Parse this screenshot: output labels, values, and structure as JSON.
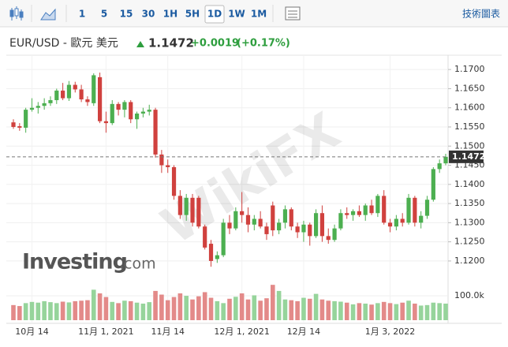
{
  "toolbar": {
    "intervals": [
      "1",
      "5",
      "15",
      "30",
      "1H",
      "5H",
      "1D",
      "1W",
      "1M"
    ],
    "active": "1D",
    "technical": "技術圖表"
  },
  "header": {
    "symbol": "EUR/USD - 歐元 美元",
    "price": "1.1472",
    "change": "+0.0019",
    "change_pct": "(+0.17%)"
  },
  "watermarks": {
    "wikifx": "WikiFX",
    "investing": "Investing",
    "dotcom": ".com"
  },
  "chart_data": {
    "type": "candlestick",
    "categories": [
      null,
      null,
      null,
      "10月 14",
      null,
      null,
      null,
      null,
      null,
      null,
      null,
      null,
      null,
      null,
      null,
      "11月 1, 2021",
      null,
      null,
      null,
      null,
      null,
      null,
      null,
      null,
      null,
      "11月 14",
      null,
      null,
      null,
      null,
      null,
      null,
      null,
      null,
      null,
      null,
      null,
      "12月 1, 2021",
      null,
      null,
      null,
      null,
      null,
      null,
      null,
      null,
      null,
      "12月 14",
      null,
      null,
      null,
      null,
      null,
      null,
      null,
      null,
      null,
      null,
      null,
      null,
      null,
      "1月 3, 2022",
      null,
      null,
      null,
      null,
      null,
      null,
      null,
      null,
      null
    ],
    "open": [
      1.1562,
      1.1552,
      1.1548,
      1.1595,
      1.16,
      1.1605,
      1.1612,
      1.162,
      1.1645,
      1.1625,
      1.166,
      1.1648,
      1.1622,
      1.1612,
      1.168,
      1.1565,
      1.156,
      1.161,
      1.1595,
      1.1615,
      1.157,
      1.1585,
      1.159,
      1.1595,
      1.1478,
      1.145,
      1.1445,
      1.137,
      1.132,
      1.1365,
      1.1365,
      1.129,
      1.1245,
      1.1205,
      1.1215,
      1.13,
      1.1285,
      1.133,
      1.132,
      1.1295,
      1.131,
      1.129,
      1.1345,
      1.128,
      1.13,
      1.1335,
      1.129,
      1.1275,
      1.1295,
      1.1265,
      1.1325,
      1.1265,
      1.1255,
      1.1285,
      1.1325,
      1.132,
      1.133,
      1.132,
      1.1345,
      1.1325,
      1.137,
      1.13,
      1.129,
      1.131,
      1.13,
      1.1365,
      1.13,
      1.1318,
      1.136,
      1.144,
      1.1455
    ],
    "high": [
      1.157,
      1.156,
      1.16,
      1.1625,
      1.1615,
      1.1625,
      1.163,
      1.165,
      1.1665,
      1.167,
      1.1668,
      1.166,
      1.163,
      1.169,
      1.1692,
      1.159,
      1.162,
      1.1615,
      1.162,
      1.162,
      1.159,
      1.16,
      1.1608,
      1.16,
      1.149,
      1.1465,
      1.145,
      1.1385,
      1.1375,
      1.1375,
      1.137,
      1.1295,
      1.1255,
      1.1225,
      1.131,
      1.132,
      1.134,
      1.138,
      1.134,
      1.132,
      1.133,
      1.13,
      1.1355,
      1.131,
      1.1345,
      1.134,
      1.13,
      1.1305,
      1.13,
      1.1335,
      1.1345,
      1.1285,
      1.1295,
      1.1335,
      1.134,
      1.1335,
      1.1345,
      1.135,
      1.136,
      1.1375,
      1.1385,
      1.131,
      1.132,
      1.1325,
      1.1375,
      1.137,
      1.133,
      1.137,
      1.1445,
      1.1465,
      1.148
    ],
    "low": [
      1.1545,
      1.154,
      1.1535,
      1.159,
      1.1585,
      1.1595,
      1.1605,
      1.161,
      1.162,
      1.1618,
      1.164,
      1.1615,
      1.1605,
      1.1605,
      1.156,
      1.1535,
      1.1555,
      1.158,
      1.1575,
      1.156,
      1.1545,
      1.1575,
      1.158,
      1.147,
      1.143,
      1.143,
      1.136,
      1.131,
      1.1305,
      1.129,
      1.1285,
      1.123,
      1.1185,
      1.1195,
      1.121,
      1.127,
      1.128,
      1.13,
      1.1275,
      1.128,
      1.1285,
      1.1255,
      1.1265,
      1.127,
      1.1285,
      1.128,
      1.126,
      1.125,
      1.124,
      1.126,
      1.125,
      1.1245,
      1.125,
      1.128,
      1.131,
      1.1305,
      1.1315,
      1.1305,
      1.132,
      1.1315,
      1.1295,
      1.1275,
      1.128,
      1.129,
      1.1295,
      1.129,
      1.1285,
      1.131,
      1.1355,
      1.143,
      1.145
    ],
    "close": [
      1.155,
      1.1548,
      1.1595,
      1.16,
      1.1605,
      1.1612,
      1.162,
      1.1645,
      1.1625,
      1.166,
      1.1648,
      1.1622,
      1.1615,
      1.1685,
      1.1565,
      1.156,
      1.161,
      1.1595,
      1.1615,
      1.157,
      1.1585,
      1.159,
      1.1595,
      1.1478,
      1.145,
      1.1445,
      1.137,
      1.132,
      1.1365,
      1.13,
      1.129,
      1.1235,
      1.12,
      1.1215,
      1.13,
      1.1285,
      1.133,
      1.132,
      1.1295,
      1.131,
      1.129,
      1.127,
      1.128,
      1.13,
      1.1335,
      1.129,
      1.1275,
      1.1295,
      1.1265,
      1.1325,
      1.1265,
      1.1255,
      1.1285,
      1.1325,
      1.132,
      1.133,
      1.132,
      1.1345,
      1.1325,
      1.137,
      1.13,
      1.129,
      1.131,
      1.13,
      1.1365,
      1.13,
      1.1318,
      1.136,
      1.144,
      1.1455,
      1.1472
    ],
    "up_color": "#4caf50",
    "down_color": "#d0413e",
    "ylim": [
      1.1171,
      1.1725
    ],
    "yticks": [
      {
        "value": 1.12,
        "label": "1.1200"
      },
      {
        "value": 1.125,
        "label": "1.1250"
      },
      {
        "value": 1.13,
        "label": "1.1300"
      },
      {
        "value": 1.135,
        "label": "1.1350"
      },
      {
        "value": 1.14,
        "label": "1.1400"
      },
      {
        "value": 1.145,
        "label": "1.1450"
      },
      {
        "value": 1.15,
        "label": "1.1500"
      },
      {
        "value": 1.155,
        "label": "1.1550"
      },
      {
        "value": 1.16,
        "label": "1.1600"
      },
      {
        "value": 1.165,
        "label": "1.1650"
      },
      {
        "value": 1.17,
        "label": "1.1700"
      }
    ],
    "last_price": {
      "value": 1.1472,
      "label": "1.1472"
    },
    "grid": true,
    "volume": {
      "values": [
        62000,
        58000,
        70000,
        75000,
        72000,
        78000,
        74000,
        70000,
        76000,
        73000,
        78000,
        80000,
        82000,
        125000,
        110000,
        95000,
        75000,
        70000,
        80000,
        78000,
        72000,
        68000,
        74000,
        120000,
        105000,
        82000,
        95000,
        110000,
        100000,
        85000,
        98000,
        115000,
        92000,
        78000,
        70000,
        88000,
        96000,
        110000,
        85000,
        102000,
        80000,
        90000,
        145000,
        120000,
        85000,
        82000,
        78000,
        92000,
        88000,
        108000,
        85000,
        80000,
        78000,
        76000,
        72000,
        65000,
        70000,
        68000,
        64000,
        70000,
        75000,
        70000,
        66000,
        72000,
        80000,
        68000,
        60000,
        62000,
        72000,
        70000,
        68000
      ],
      "up_color": "#96d49b",
      "down_color": "#e38a89",
      "ylim": [
        0,
        165000
      ],
      "yticks": [
        {
          "value": 100000,
          "label": "100.0k"
        }
      ]
    }
  }
}
